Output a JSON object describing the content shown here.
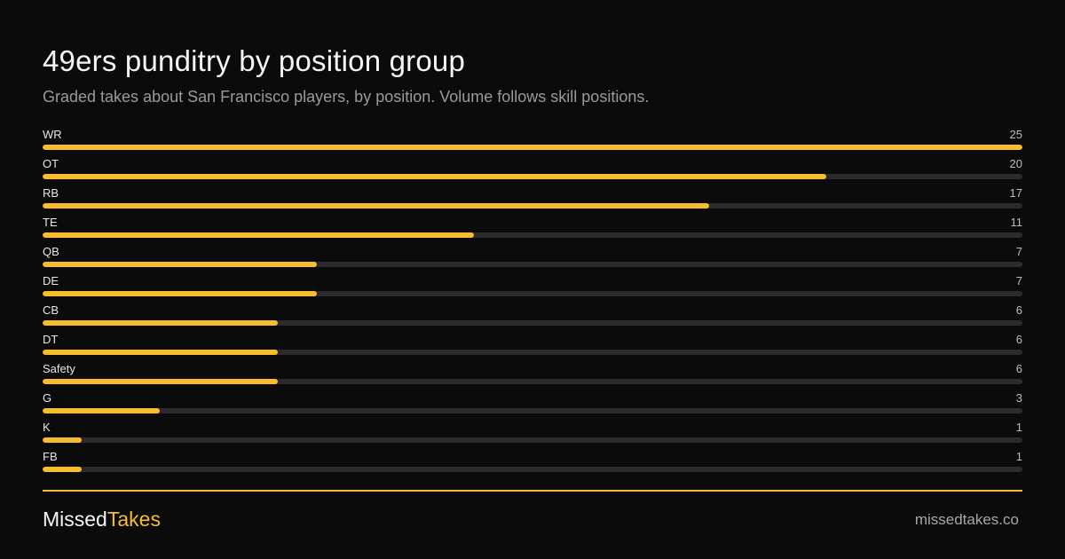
{
  "header": {
    "title": "49ers punditry by position group",
    "subtitle": "Graded takes about San Francisco players, by position. Volume follows skill positions."
  },
  "colors": {
    "background": "#0b0b0b",
    "accent": "#f8bd2c",
    "track": "#2c2a2e"
  },
  "chart_data": {
    "type": "bar",
    "orientation": "horizontal",
    "categories": [
      "WR",
      "OT",
      "RB",
      "TE",
      "QB",
      "DE",
      "CB",
      "DT",
      "Safety",
      "G",
      "K",
      "FB"
    ],
    "values": [
      25,
      20,
      17,
      11,
      7,
      7,
      6,
      6,
      6,
      3,
      1,
      1
    ],
    "xlim": [
      0,
      25
    ],
    "grid": false,
    "legend": "none",
    "title": "49ers punditry by position group",
    "subtitle": "Graded takes about San Francisco players, by position. Volume follows skill positions."
  },
  "footer": {
    "brand_first": "Missed",
    "brand_second": "Takes",
    "site": "missedtakes.co"
  }
}
